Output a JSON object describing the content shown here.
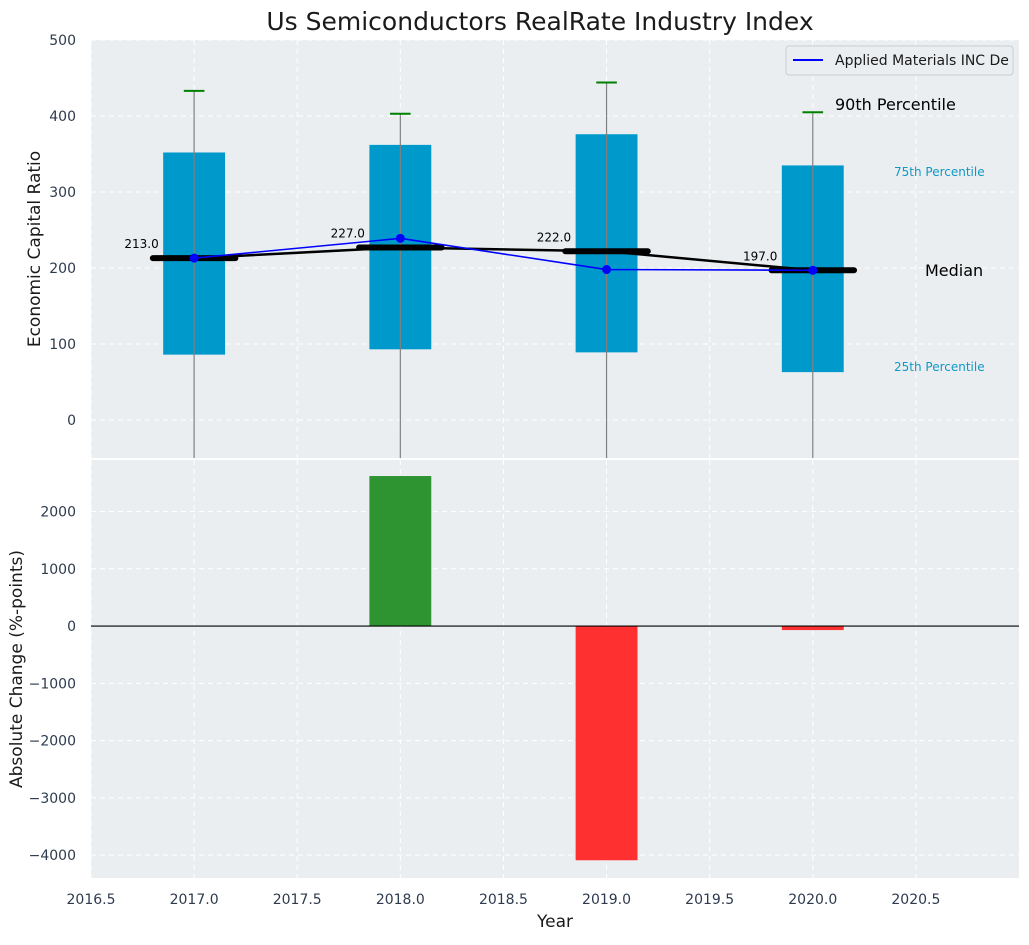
{
  "chart_data": [
    {
      "type": "box",
      "title": "Us Semiconductors RealRate Industry Index",
      "ylabel": "Economic Capital Ratio",
      "xlim": [
        2016.5,
        2021.0
      ],
      "ylim": [
        -50,
        500
      ],
      "yticks": [
        "500",
        "400",
        "300",
        "200",
        "100",
        "0"
      ],
      "grid": true,
      "colors": {
        "box": "#0099cc",
        "whisker_cap": "#008000",
        "median": "#000000",
        "series": "#0000ff",
        "whisker": "#808080"
      },
      "x": [
        2017.0,
        2018.0,
        2019.0,
        2020.0
      ],
      "boxes": [
        {
          "q25": 86,
          "q75": 352,
          "p90": 433,
          "median": 213
        },
        {
          "q25": 93,
          "q75": 362,
          "p90": 403,
          "median": 227
        },
        {
          "q25": 89,
          "q75": 376,
          "p90": 444,
          "median": 222
        },
        {
          "q25": 63,
          "q75": 335,
          "p90": 405,
          "median": 197
        }
      ],
      "median_labels": [
        "213.0",
        "227.0",
        "222.0",
        "197.0"
      ],
      "series": [
        {
          "name": "Applied Materials INC De",
          "values": [
            213,
            239,
            198,
            197
          ]
        }
      ],
      "legend": {
        "position": "top-right"
      },
      "annotations": {
        "p90": "90th Percentile",
        "p75": "75th Percentile",
        "median": "Median",
        "p25": "25th Percentile"
      }
    },
    {
      "type": "bar",
      "ylabel": "Absolute Change (%-points)",
      "xlabel": "Year",
      "xlim": [
        2016.5,
        2021.0
      ],
      "ylim": [
        -4400,
        2900
      ],
      "yticks": [
        "2000",
        "1000",
        "0",
        "−1000",
        "−2000",
        "−3000",
        "−4000"
      ],
      "xticks": [
        "2016.5",
        "2017.0",
        "2017.5",
        "2018.0",
        "2018.5",
        "2019.0",
        "2019.5",
        "2020.0",
        "2020.5"
      ],
      "grid": true,
      "x": [
        2018.0,
        2019.0,
        2020.0
      ],
      "values": [
        2620,
        -4090,
        -70
      ],
      "colors": {
        "positive": "#2e9432",
        "negative": "#ff3030"
      }
    }
  ]
}
